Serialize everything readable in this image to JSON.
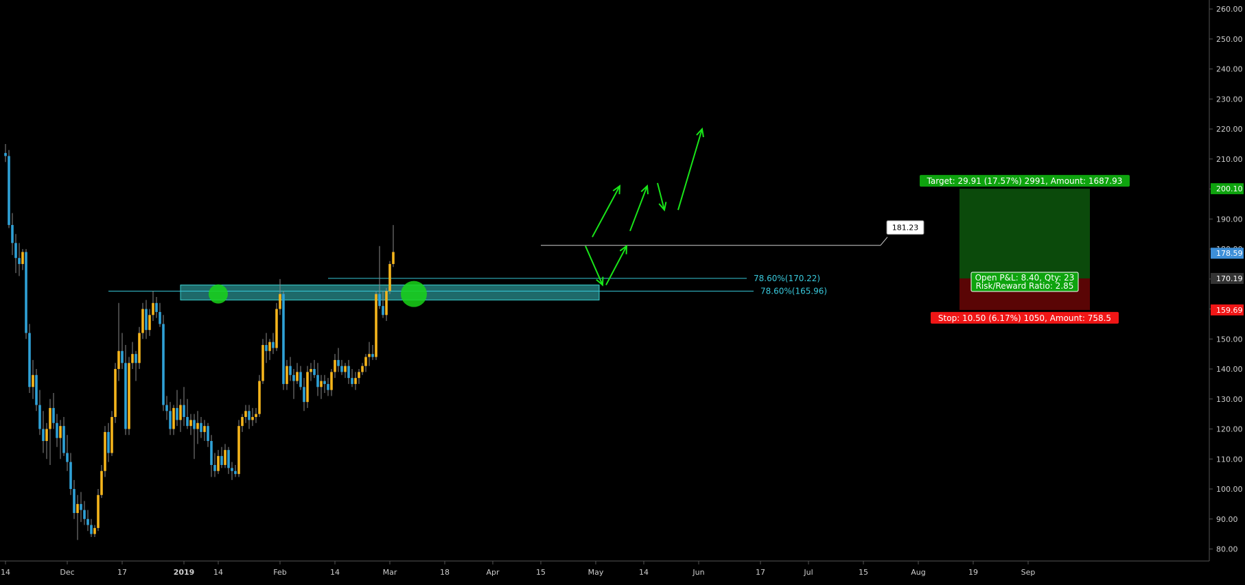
{
  "colors": {
    "background": "#000000",
    "up_candle": "#f5b51c",
    "down_candle": "#2fa1d6",
    "wick": "#8a8a8a",
    "zone_fill": "#3bd3d3",
    "fib_line": "#37c8d8",
    "fib_text": "#39c9dc",
    "circle": "#19d419",
    "arrow": "#19e619",
    "target_fill": "#0b4a0b",
    "stop_fill": "#5a0505",
    "target_label": "#0ea30e",
    "stop_label": "#f01616",
    "axis_text": "#cfcfcf",
    "axis_line": "#555555",
    "price_tag_current": "#3d8fd8",
    "price_tag_mid": "#333333"
  },
  "chart_data": {
    "type": "candlestick",
    "ylim": [
      76,
      263
    ],
    "y_ticks": [
      "80.00",
      "90.00",
      "100.00",
      "110.00",
      "120.00",
      "130.00",
      "140.00",
      "150.00",
      "160.00",
      "170.00",
      "180.00",
      "190.00",
      "200.00",
      "210.00",
      "220.00",
      "230.00",
      "240.00",
      "250.00",
      "260.00"
    ],
    "x_ticks": [
      "14",
      "Dec",
      "17",
      "2019",
      "14",
      "Feb",
      "14",
      "Mar",
      "18",
      "Apr",
      "15",
      "May",
      "14",
      "Jun",
      "17",
      "Jul",
      "15",
      "Aug",
      "19",
      "Sep"
    ],
    "first_candle_date": "2018-11-13",
    "candles": [
      {
        "o": 212,
        "h": 215,
        "l": 209,
        "c": 211
      },
      {
        "o": 211,
        "h": 213,
        "l": 187,
        "c": 188
      },
      {
        "o": 188,
        "h": 192,
        "l": 178,
        "c": 182
      },
      {
        "o": 182,
        "h": 185,
        "l": 172,
        "c": 177
      },
      {
        "o": 177,
        "h": 182,
        "l": 171,
        "c": 175
      },
      {
        "o": 175,
        "h": 180,
        "l": 173,
        "c": 179
      },
      {
        "o": 179,
        "h": 180,
        "l": 150,
        "c": 152
      },
      {
        "o": 152,
        "h": 155,
        "l": 132,
        "c": 134
      },
      {
        "o": 134,
        "h": 143,
        "l": 130,
        "c": 138
      },
      {
        "o": 138,
        "h": 140,
        "l": 126,
        "c": 128
      },
      {
        "o": 128,
        "h": 133,
        "l": 118,
        "c": 120
      },
      {
        "o": 120,
        "h": 126,
        "l": 112,
        "c": 116
      },
      {
        "o": 116,
        "h": 122,
        "l": 110,
        "c": 120
      },
      {
        "o": 120,
        "h": 130,
        "l": 108,
        "c": 127
      },
      {
        "o": 127,
        "h": 132,
        "l": 120,
        "c": 122
      },
      {
        "o": 122,
        "h": 125,
        "l": 114,
        "c": 117
      },
      {
        "o": 117,
        "h": 123,
        "l": 110,
        "c": 121
      },
      {
        "o": 121,
        "h": 124,
        "l": 111,
        "c": 112
      },
      {
        "o": 112,
        "h": 118,
        "l": 106,
        "c": 109
      },
      {
        "o": 109,
        "h": 112,
        "l": 98,
        "c": 100
      },
      {
        "o": 100,
        "h": 103,
        "l": 90,
        "c": 92
      },
      {
        "o": 92,
        "h": 98,
        "l": 83,
        "c": 95
      },
      {
        "o": 95,
        "h": 99,
        "l": 89,
        "c": 93
      },
      {
        "o": 93,
        "h": 96,
        "l": 88,
        "c": 90
      },
      {
        "o": 90,
        "h": 93,
        "l": 86,
        "c": 88
      },
      {
        "o": 88,
        "h": 90,
        "l": 84,
        "c": 85
      },
      {
        "o": 85,
        "h": 88,
        "l": 84,
        "c": 87
      },
      {
        "o": 87,
        "h": 100,
        "l": 86,
        "c": 98
      },
      {
        "o": 98,
        "h": 108,
        "l": 97,
        "c": 106
      },
      {
        "o": 106,
        "h": 121,
        "l": 104,
        "c": 119
      },
      {
        "o": 119,
        "h": 122,
        "l": 109,
        "c": 112
      },
      {
        "o": 112,
        "h": 126,
        "l": 111,
        "c": 124
      },
      {
        "o": 124,
        "h": 142,
        "l": 122,
        "c": 140
      },
      {
        "o": 140,
        "h": 162,
        "l": 136,
        "c": 146
      },
      {
        "o": 146,
        "h": 152,
        "l": 140,
        "c": 142
      },
      {
        "o": 142,
        "h": 148,
        "l": 118,
        "c": 120
      },
      {
        "o": 120,
        "h": 144,
        "l": 118,
        "c": 142
      },
      {
        "o": 142,
        "h": 149,
        "l": 140,
        "c": 145
      },
      {
        "o": 145,
        "h": 146,
        "l": 136,
        "c": 142
      },
      {
        "o": 142,
        "h": 154,
        "l": 140,
        "c": 152
      },
      {
        "o": 152,
        "h": 162,
        "l": 150,
        "c": 160
      },
      {
        "o": 160,
        "h": 163,
        "l": 150,
        "c": 153
      },
      {
        "o": 153,
        "h": 160,
        "l": 151,
        "c": 158
      },
      {
        "o": 158,
        "h": 166,
        "l": 156,
        "c": 162
      },
      {
        "o": 162,
        "h": 164,
        "l": 157,
        "c": 159
      },
      {
        "o": 159,
        "h": 162,
        "l": 154,
        "c": 155
      },
      {
        "o": 155,
        "h": 158,
        "l": 126,
        "c": 128
      },
      {
        "o": 128,
        "h": 131,
        "l": 123,
        "c": 126
      },
      {
        "o": 126,
        "h": 129,
        "l": 118,
        "c": 120
      },
      {
        "o": 120,
        "h": 128,
        "l": 118,
        "c": 127
      },
      {
        "o": 127,
        "h": 133,
        "l": 121,
        "c": 123
      },
      {
        "o": 123,
        "h": 130,
        "l": 119,
        "c": 128
      },
      {
        "o": 128,
        "h": 134,
        "l": 121,
        "c": 124
      },
      {
        "o": 124,
        "h": 130,
        "l": 120,
        "c": 121
      },
      {
        "o": 121,
        "h": 125,
        "l": 118,
        "c": 123
      },
      {
        "o": 123,
        "h": 125,
        "l": 110,
        "c": 120
      },
      {
        "o": 120,
        "h": 126,
        "l": 115,
        "c": 122
      },
      {
        "o": 122,
        "h": 124,
        "l": 117,
        "c": 119
      },
      {
        "o": 119,
        "h": 123,
        "l": 116,
        "c": 121
      },
      {
        "o": 121,
        "h": 122,
        "l": 114,
        "c": 116
      },
      {
        "o": 116,
        "h": 118,
        "l": 104,
        "c": 108
      },
      {
        "o": 108,
        "h": 112,
        "l": 104,
        "c": 106
      },
      {
        "o": 106,
        "h": 113,
        "l": 105,
        "c": 111
      },
      {
        "o": 111,
        "h": 114,
        "l": 107,
        "c": 108
      },
      {
        "o": 108,
        "h": 115,
        "l": 107,
        "c": 113
      },
      {
        "o": 113,
        "h": 114,
        "l": 105,
        "c": 107
      },
      {
        "o": 107,
        "h": 109,
        "l": 103,
        "c": 106
      },
      {
        "o": 106,
        "h": 108,
        "l": 104,
        "c": 105
      },
      {
        "o": 105,
        "h": 123,
        "l": 104,
        "c": 121
      },
      {
        "o": 121,
        "h": 125,
        "l": 119,
        "c": 124
      },
      {
        "o": 124,
        "h": 128,
        "l": 122,
        "c": 126
      },
      {
        "o": 126,
        "h": 128,
        "l": 120,
        "c": 123
      },
      {
        "o": 123,
        "h": 127,
        "l": 121,
        "c": 124
      },
      {
        "o": 124,
        "h": 127,
        "l": 122,
        "c": 125
      },
      {
        "o": 125,
        "h": 138,
        "l": 124,
        "c": 136
      },
      {
        "o": 136,
        "h": 150,
        "l": 135,
        "c": 148
      },
      {
        "o": 148,
        "h": 152,
        "l": 142,
        "c": 146
      },
      {
        "o": 146,
        "h": 150,
        "l": 143,
        "c": 149
      },
      {
        "o": 149,
        "h": 152,
        "l": 145,
        "c": 147
      },
      {
        "o": 147,
        "h": 162,
        "l": 146,
        "c": 160
      },
      {
        "o": 160,
        "h": 170,
        "l": 158,
        "c": 165
      },
      {
        "o": 165,
        "h": 166,
        "l": 133,
        "c": 135
      },
      {
        "o": 135,
        "h": 143,
        "l": 133,
        "c": 141
      },
      {
        "o": 141,
        "h": 144,
        "l": 136,
        "c": 138
      },
      {
        "o": 138,
        "h": 140,
        "l": 130,
        "c": 136
      },
      {
        "o": 136,
        "h": 142,
        "l": 135,
        "c": 139
      },
      {
        "o": 139,
        "h": 141,
        "l": 133,
        "c": 134
      },
      {
        "o": 134,
        "h": 137,
        "l": 126,
        "c": 129
      },
      {
        "o": 129,
        "h": 141,
        "l": 127,
        "c": 139
      },
      {
        "o": 139,
        "h": 142,
        "l": 136,
        "c": 140
      },
      {
        "o": 140,
        "h": 143,
        "l": 137,
        "c": 138
      },
      {
        "o": 138,
        "h": 142,
        "l": 131,
        "c": 134
      },
      {
        "o": 134,
        "h": 138,
        "l": 130,
        "c": 136
      },
      {
        "o": 136,
        "h": 138,
        "l": 132,
        "c": 135
      },
      {
        "o": 135,
        "h": 137,
        "l": 131,
        "c": 133
      },
      {
        "o": 133,
        "h": 140,
        "l": 131,
        "c": 139
      },
      {
        "o": 139,
        "h": 145,
        "l": 137,
        "c": 143
      },
      {
        "o": 143,
        "h": 147,
        "l": 139,
        "c": 141
      },
      {
        "o": 141,
        "h": 143,
        "l": 138,
        "c": 139
      },
      {
        "o": 139,
        "h": 142,
        "l": 137,
        "c": 141
      },
      {
        "o": 141,
        "h": 143,
        "l": 135,
        "c": 137
      },
      {
        "o": 137,
        "h": 140,
        "l": 134,
        "c": 135
      },
      {
        "o": 135,
        "h": 139,
        "l": 133,
        "c": 137
      },
      {
        "o": 137,
        "h": 140,
        "l": 135,
        "c": 139
      },
      {
        "o": 139,
        "h": 142,
        "l": 138,
        "c": 141
      },
      {
        "o": 141,
        "h": 145,
        "l": 139,
        "c": 144
      },
      {
        "o": 144,
        "h": 149,
        "l": 141,
        "c": 145
      },
      {
        "o": 145,
        "h": 148,
        "l": 143,
        "c": 144
      },
      {
        "o": 144,
        "h": 166,
        "l": 143,
        "c": 165
      },
      {
        "o": 165,
        "h": 181,
        "l": 160,
        "c": 161
      },
      {
        "o": 161,
        "h": 166,
        "l": 157,
        "c": 158
      },
      {
        "o": 158,
        "h": 167,
        "l": 156,
        "c": 166
      },
      {
        "o": 166,
        "h": 176,
        "l": 165,
        "c": 175
      },
      {
        "o": 175,
        "h": 188,
        "l": 174,
        "c": 179
      }
    ],
    "zone": {
      "start_index": 51,
      "end_index": 173,
      "top": 168,
      "bottom": 163
    },
    "fib_levels": [
      {
        "label": "78.60%(170.22)",
        "value": 170.22,
        "start_index": 94,
        "end_index": 216
      },
      {
        "label": "78.60%(165.96)",
        "value": 165.96,
        "start_index": 30,
        "end_index": 218
      }
    ],
    "resistance_line": {
      "value": 181.23,
      "start_index": 156,
      "end_index": 255,
      "label": "181.23"
    },
    "circles": [
      {
        "index": 62,
        "value": 165
      },
      {
        "index": 119,
        "value": 165
      }
    ],
    "arrows": [
      {
        "from": [
          171,
          184
        ],
        "to": [
          179,
          201
        ]
      },
      {
        "from": [
          169,
          181
        ],
        "to": [
          174,
          168
        ]
      },
      {
        "from": [
          175,
          168
        ],
        "to": [
          181,
          181
        ]
      },
      {
        "from": [
          182,
          186
        ],
        "to": [
          187,
          201
        ]
      },
      {
        "from": [
          190,
          202
        ],
        "to": [
          192,
          193
        ]
      },
      {
        "from": [
          196,
          193
        ],
        "to": [
          203,
          220
        ]
      }
    ],
    "position": {
      "start_index": 278,
      "end_index": 316,
      "target": 200.1,
      "entry": 170.19,
      "stop": 159.69,
      "target_label": "Target: 29.91 (17.57%) 2991, Amount: 1687.93",
      "stop_label": "Stop: 10.50 (6.17%) 1050, Amount: 758.5",
      "pnl_label": "Open P&L: 8.40, Qty: 23",
      "rr_label": "Risk/Reward Ratio: 2.85"
    },
    "price_tags": [
      {
        "label": "200.10",
        "value": 200.1,
        "kind": "target"
      },
      {
        "label": "178.59",
        "value": 178.59,
        "kind": "current"
      },
      {
        "label": "170.19",
        "value": 170.19,
        "kind": "mid"
      },
      {
        "label": "159.69",
        "value": 159.69,
        "kind": "stop"
      }
    ]
  }
}
